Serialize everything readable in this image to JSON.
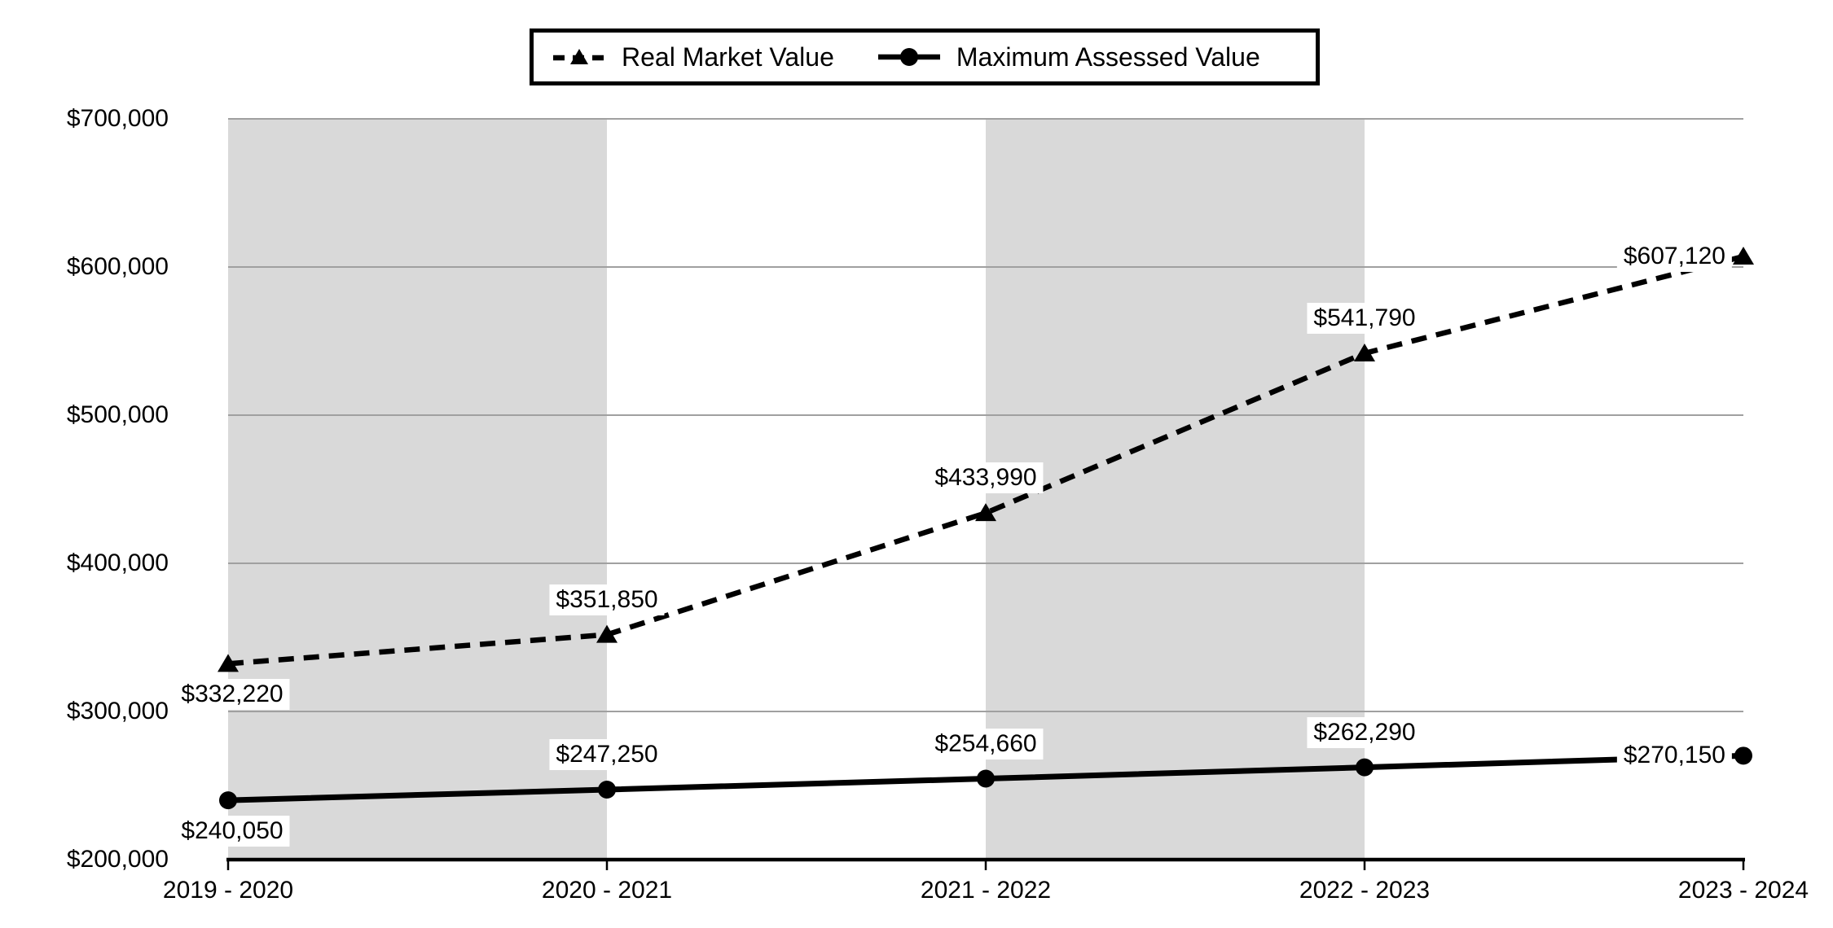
{
  "chart_data": {
    "type": "line",
    "title": "",
    "xlabel": "",
    "ylabel": "",
    "categories": [
      "2019 - 2020",
      "2020 - 2021",
      "2021 - 2022",
      "2022 - 2023",
      "2023 - 2024"
    ],
    "series": [
      {
        "name": "Real Market Value",
        "values": [
          332220,
          351850,
          433990,
          541790,
          607120
        ],
        "data_labels": [
          "$332,220",
          "$351,850",
          "$433,990",
          "$541,790",
          "$607,120"
        ],
        "label_placement": [
          "below",
          "above",
          "above",
          "above",
          "left"
        ],
        "line_style": "dashed",
        "marker": "triangle"
      },
      {
        "name": "Maximum Assessed Value",
        "values": [
          240050,
          247250,
          254660,
          262290,
          270150
        ],
        "data_labels": [
          "$240,050",
          "$247,250",
          "$254,660",
          "$262,290",
          "$270,150"
        ],
        "label_placement": [
          "below",
          "above",
          "above",
          "above",
          "left"
        ],
        "line_style": "solid",
        "marker": "circle"
      }
    ],
    "ylim": [
      200000,
      700000
    ],
    "y_tick_step": 100000,
    "y_tick_labels": [
      "$200,000",
      "$300,000",
      "$400,000",
      "$500,000",
      "$600,000",
      "$700,000"
    ],
    "grid": "horizontal",
    "legend_position": "top-center",
    "shaded_columns": [
      0,
      2
    ],
    "colors": {
      "series": "#000000",
      "axis": "#000000",
      "gridline": "#a0a0a0",
      "band": "#d9d9d9",
      "label_background": "#ffffff",
      "text": "#000000",
      "background": "#ffffff"
    }
  }
}
